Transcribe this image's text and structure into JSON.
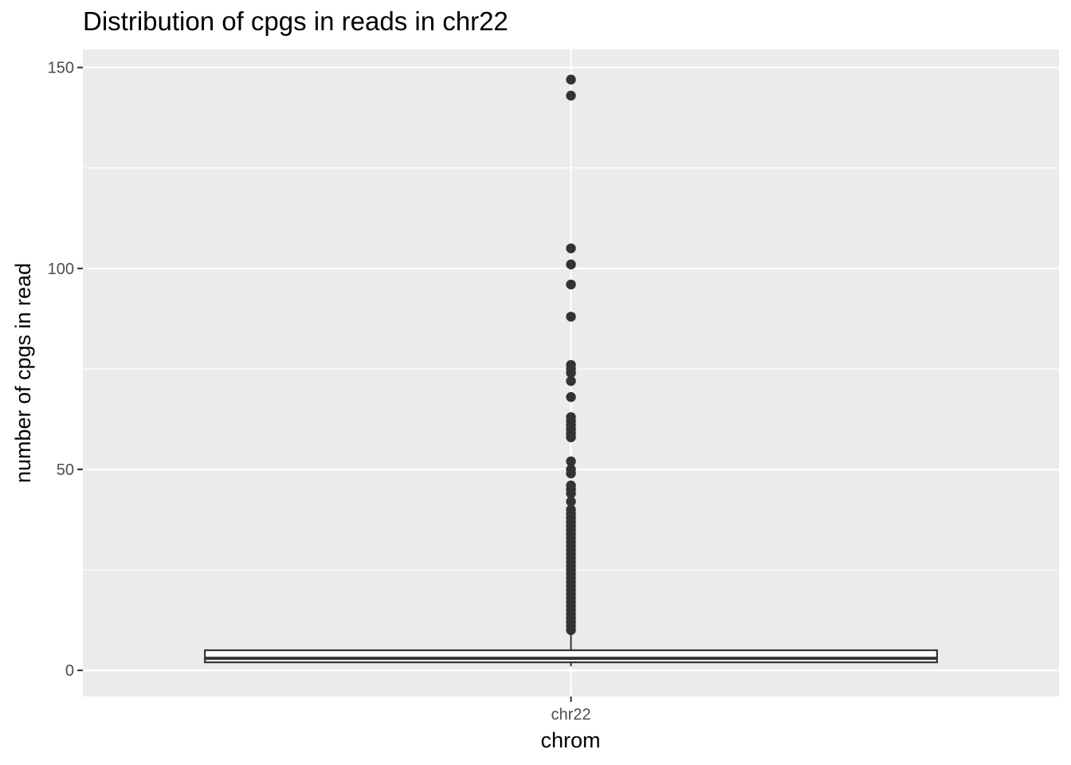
{
  "chart_data": {
    "type": "boxplot",
    "title": "Distribution of cpgs in reads in chr22",
    "xlabel": "chrom",
    "ylabel": "number of cpgs in read",
    "categories": [
      "chr22"
    ],
    "ylim": [
      -6.5,
      154.5
    ],
    "y_ticks": [
      0,
      50,
      100,
      150
    ],
    "y_tick_labels": [
      "0",
      "50",
      "100",
      "150"
    ],
    "grid": true,
    "boxes": [
      {
        "category": "chr22",
        "whisker_low": 1,
        "q1": 2,
        "median": 3,
        "q3": 5,
        "whisker_high": 9,
        "outliers": [
          147,
          143,
          105,
          101,
          96,
          88,
          76,
          75,
          74,
          72,
          68,
          63,
          62,
          61,
          60,
          59,
          58,
          52,
          50,
          49,
          46,
          45,
          44,
          42,
          40,
          39,
          38,
          37,
          36,
          35,
          34,
          33,
          32,
          31,
          30,
          29,
          28,
          27,
          26,
          25,
          24,
          23,
          22,
          21,
          20,
          19,
          18,
          17,
          16,
          15,
          14,
          13,
          12,
          11,
          10
        ]
      }
    ],
    "colors": {
      "panel_background": "#ebebeb",
      "grid_line": "#ffffff",
      "box_fill": "#ffffff",
      "box_stroke": "#333333",
      "point": "#333333"
    }
  }
}
